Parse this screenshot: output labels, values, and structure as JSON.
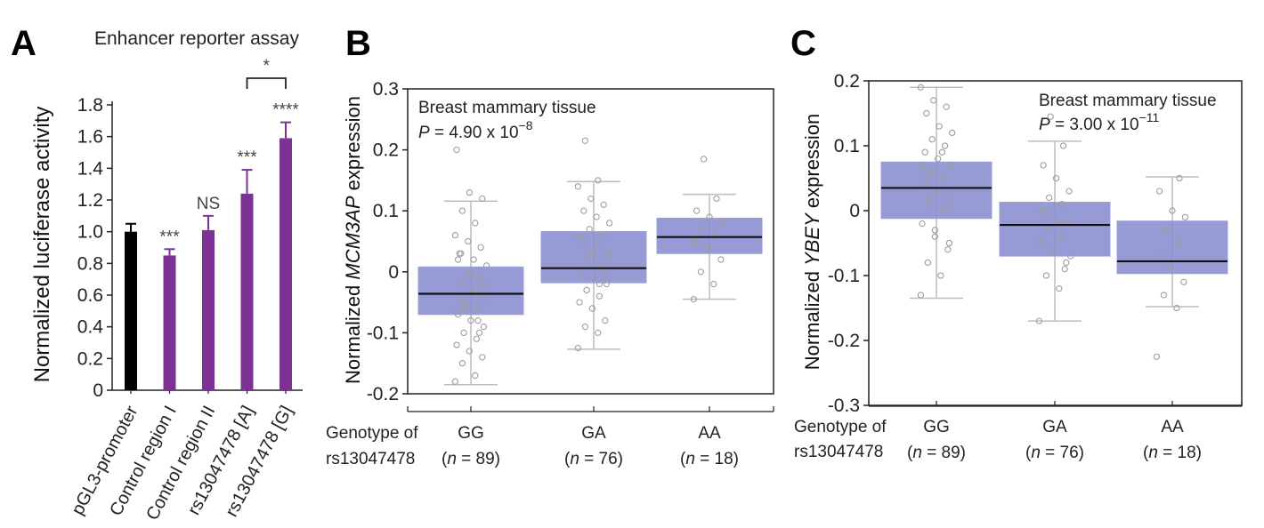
{
  "panels": {
    "a": "A",
    "b": "B",
    "c": "C"
  },
  "chart_data": [
    {
      "type": "bar",
      "title": "Enhancer reporter assay",
      "ylabel": "Normalized luciferase activity",
      "ylim": [
        0,
        1.8
      ],
      "yticks": [
        "0",
        "0.2",
        "0.4",
        "0.6",
        "0.8",
        "1.0",
        "1.2",
        "1.4",
        "1.6",
        "1.8"
      ],
      "categories": [
        "pGL3-promoter",
        "Control region I",
        "Control region II",
        "rs13047478 [A]",
        "rs13047478 [G]"
      ],
      "values": [
        1.0,
        0.85,
        1.01,
        1.24,
        1.59
      ],
      "errors": [
        0.05,
        0.04,
        0.09,
        0.15,
        0.1
      ],
      "colors": [
        "#000000",
        "#7b3294",
        "#7b3294",
        "#7b3294",
        "#7b3294"
      ],
      "significance": [
        "",
        "***",
        "NS",
        "***",
        "****"
      ],
      "bracket_label": "*",
      "grid": false
    },
    {
      "type": "box",
      "annotation": {
        "tissue": "Breast mammary tissue",
        "p_prefix": "P",
        "p_value": " = 4.90 x 10",
        "p_exp": "−8"
      },
      "ylabel_pre": "Normalized ",
      "ylabel_gene": "MCM3AP",
      "ylabel_post": " expression",
      "ylim": [
        -0.2,
        0.3
      ],
      "yticks": [
        "-0.2",
        "-0.1",
        "0",
        "0.1",
        "0.2",
        "0.3"
      ],
      "xlabel_lines": [
        "Genotype of",
        "rs13047478"
      ],
      "categories": [
        "GG",
        "GA",
        "AA"
      ],
      "n_labels": [
        "= 89)",
        "= 76)",
        "= 18)"
      ],
      "n_prefix": "(",
      "n_italic": "n",
      "boxes": [
        {
          "q1": -0.07,
          "median": -0.036,
          "q3": 0.008,
          "lower": -0.185,
          "upper": 0.116
        },
        {
          "q1": -0.018,
          "median": 0.006,
          "q3": 0.066,
          "lower": -0.127,
          "upper": 0.148
        },
        {
          "q1": 0.03,
          "median": 0.057,
          "q3": 0.088,
          "lower": -0.045,
          "upper": 0.127
        }
      ],
      "points": [
        [
          -0.18,
          -0.17,
          -0.15,
          -0.14,
          -0.13,
          -0.12,
          -0.11,
          -0.1,
          -0.09,
          -0.08,
          -0.07,
          -0.06,
          -0.05,
          -0.04,
          -0.03,
          -0.02,
          -0.01,
          0,
          0.01,
          0.02,
          0.03,
          0.04,
          0.05,
          0.06,
          0.08,
          0.1,
          0.12,
          0.13,
          0.2,
          -0.03,
          -0.05,
          -0.02,
          0.0,
          0.02,
          -0.08,
          -0.06,
          -0.04,
          -0.01,
          0.03,
          -0.1
        ],
        [
          -0.125,
          -0.1,
          -0.09,
          -0.08,
          -0.06,
          -0.05,
          -0.04,
          -0.03,
          -0.02,
          -0.01,
          0,
          0.01,
          0.02,
          0.03,
          0.04,
          0.05,
          0.06,
          0.07,
          0.08,
          0.09,
          0.1,
          0.11,
          0.12,
          0.14,
          0.15,
          0.215,
          0.0,
          0.03,
          0.06,
          -0.02
        ],
        [
          -0.045,
          -0.02,
          0.0,
          0.02,
          0.04,
          0.05,
          0.06,
          0.07,
          0.08,
          0.09,
          0.1,
          0.12,
          0.185
        ]
      ],
      "box_color": "#8b8fd0"
    },
    {
      "type": "box",
      "annotation": {
        "tissue": "Breast mammary tissue",
        "p_prefix": "P",
        "p_value": " = 3.00 x 10",
        "p_exp": "−11"
      },
      "ylabel_pre": "Normalized ",
      "ylabel_gene": "YBEY",
      "ylabel_post": " expression",
      "ylim": [
        -0.3,
        0.2
      ],
      "yticks": [
        "-0.3",
        "-0.2",
        "-0.1",
        "0",
        "0.1",
        "0.2"
      ],
      "xlabel_lines": [
        "Genotype of",
        "rs13047478"
      ],
      "categories": [
        "GG",
        "GA",
        "AA"
      ],
      "n_labels": [
        "= 89)",
        "= 76)",
        "= 18)"
      ],
      "n_prefix": "(",
      "n_italic": "n",
      "boxes": [
        {
          "q1": -0.012,
          "median": 0.035,
          "q3": 0.075,
          "lower": -0.135,
          "upper": 0.19
        },
        {
          "q1": -0.07,
          "median": -0.022,
          "q3": 0.013,
          "lower": -0.17,
          "upper": 0.107
        },
        {
          "q1": -0.097,
          "median": -0.078,
          "q3": -0.016,
          "lower": -0.148,
          "upper": 0.052
        }
      ],
      "points": [
        [
          -0.13,
          -0.1,
          -0.08,
          -0.06,
          -0.04,
          -0.02,
          0,
          0.01,
          0.02,
          0.03,
          0.04,
          0.05,
          0.06,
          0.07,
          0.08,
          0.09,
          0.1,
          0.11,
          0.12,
          0.13,
          0.15,
          0.16,
          0.17,
          0.19,
          0.03,
          0.05,
          0.0,
          -0.03,
          0.07,
          0.09,
          0.02,
          -0.05
        ],
        [
          -0.17,
          -0.12,
          -0.1,
          -0.08,
          -0.06,
          -0.05,
          -0.04,
          -0.03,
          -0.02,
          -0.01,
          0,
          0.01,
          0.02,
          0.03,
          0.05,
          0.07,
          0.1,
          0.145,
          -0.07,
          -0.02,
          0.0,
          -0.09
        ],
        [
          -0.225,
          -0.15,
          -0.13,
          -0.11,
          -0.09,
          -0.07,
          -0.05,
          -0.03,
          -0.01,
          0.0,
          0.03,
          0.05
        ]
      ],
      "box_color": "#8b8fd0"
    }
  ]
}
